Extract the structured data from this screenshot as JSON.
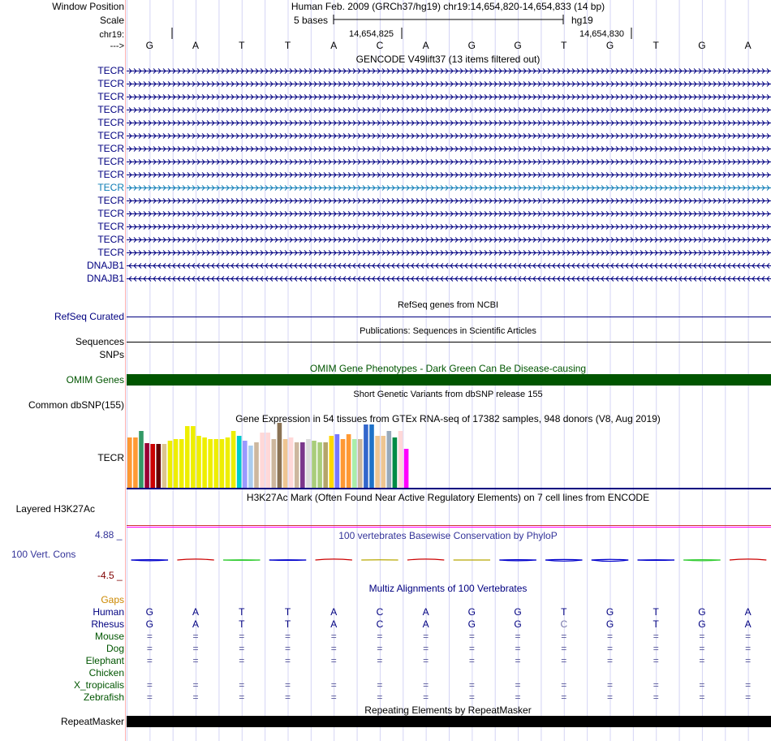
{
  "header": {
    "position_label": "Window Position",
    "position_value": "Human Feb. 2009 (GRCh37/hg19)   chr19:14,654,820-14,654,833 (14 bp)",
    "scale_label": "Scale",
    "scale_text": "5 bases",
    "scale_db": "hg19",
    "chrom_label": "chr19:",
    "coord_1": "14,654,825",
    "coord_2": "14,654,830",
    "strand_label": "--->"
  },
  "sequence": [
    "G",
    "A",
    "T",
    "T",
    "A",
    "C",
    "A",
    "G",
    "G",
    "T",
    "G",
    "T",
    "G",
    "A"
  ],
  "gencode": {
    "title": "GENCODE V49lift37 (13 items filtered out)",
    "items": [
      {
        "name": "TECR",
        "color": "#000080",
        "strand": "+"
      },
      {
        "name": "TECR",
        "color": "#000080",
        "strand": "+"
      },
      {
        "name": "TECR",
        "color": "#000080",
        "strand": "+"
      },
      {
        "name": "TECR",
        "color": "#000080",
        "strand": "+"
      },
      {
        "name": "TECR",
        "color": "#000080",
        "strand": "+"
      },
      {
        "name": "TECR",
        "color": "#000080",
        "strand": "+"
      },
      {
        "name": "TECR",
        "color": "#000080",
        "strand": "+"
      },
      {
        "name": "TECR",
        "color": "#000080",
        "strand": "+"
      },
      {
        "name": "TECR",
        "color": "#000080",
        "strand": "+"
      },
      {
        "name": "TECR",
        "color": "#0c7cb5",
        "strand": "+"
      },
      {
        "name": "TECR",
        "color": "#000080",
        "strand": "+"
      },
      {
        "name": "TECR",
        "color": "#000080",
        "strand": "+"
      },
      {
        "name": "TECR",
        "color": "#000080",
        "strand": "+"
      },
      {
        "name": "TECR",
        "color": "#000080",
        "strand": "+"
      },
      {
        "name": "TECR",
        "color": "#000080",
        "strand": "+"
      },
      {
        "name": "DNAJB1",
        "color": "#000080",
        "strand": "-"
      },
      {
        "name": "DNAJB1",
        "color": "#000080",
        "strand": "-"
      }
    ]
  },
  "refseq": {
    "title": "RefSeq genes from NCBI",
    "label": "RefSeq Curated",
    "color": "#000080"
  },
  "pubs": {
    "title": "Publications: Sequences in Scientific Articles",
    "label1": "Sequences",
    "label2": "SNPs"
  },
  "omim": {
    "title": "OMIM Gene Phenotypes - Dark Green Can Be Disease-causing",
    "label": "OMIM Genes",
    "color": "#005500"
  },
  "dbsnp": {
    "title": "Short Genetic Variants from dbSNP release 155",
    "label": "Common dbSNP(155)"
  },
  "gtex": {
    "title": "Gene Expression in 54 tissues from GTEx RNA-seq of 17382 samples, 948 donors (V8, Aug 2019)",
    "label": "TECR",
    "max_value": 80,
    "bars": [
      {
        "v": 62,
        "c": "#ff9933"
      },
      {
        "v": 62,
        "c": "#ff9933"
      },
      {
        "v": 70,
        "c": "#339966"
      },
      {
        "v": 55,
        "c": "#990033"
      },
      {
        "v": 54,
        "c": "#cc0000"
      },
      {
        "v": 54,
        "c": "#660000"
      },
      {
        "v": 54,
        "c": "#dcc590"
      },
      {
        "v": 58,
        "c": "#eeee00"
      },
      {
        "v": 60,
        "c": "#eeee00"
      },
      {
        "v": 60,
        "c": "#eeee00"
      },
      {
        "v": 76,
        "c": "#eeee00"
      },
      {
        "v": 76,
        "c": "#eeee00"
      },
      {
        "v": 64,
        "c": "#eeee00"
      },
      {
        "v": 62,
        "c": "#eeee00"
      },
      {
        "v": 60,
        "c": "#eeee00"
      },
      {
        "v": 60,
        "c": "#eeee00"
      },
      {
        "v": 60,
        "c": "#eeee00"
      },
      {
        "v": 62,
        "c": "#eeee00"
      },
      {
        "v": 70,
        "c": "#eeee00"
      },
      {
        "v": 64,
        "c": "#00cccc"
      },
      {
        "v": 58,
        "c": "#9999ff"
      },
      {
        "v": 52,
        "c": "#aaccee"
      },
      {
        "v": 56,
        "c": "#cdb79e"
      },
      {
        "v": 68,
        "c": "#ffd8d8"
      },
      {
        "v": 68,
        "c": "#ffd8d8"
      },
      {
        "v": 60,
        "c": "#cdb79e"
      },
      {
        "v": 80,
        "c": "#8b7355"
      },
      {
        "v": 60,
        "c": "#eec591"
      },
      {
        "v": 62,
        "c": "#ffd8d8"
      },
      {
        "v": 56,
        "c": "#cdb79e"
      },
      {
        "v": 56,
        "c": "#7a378b"
      },
      {
        "v": 60,
        "c": "#dcdcdc"
      },
      {
        "v": 58,
        "c": "#a9cd7b"
      },
      {
        "v": 56,
        "c": "#a9cd7b"
      },
      {
        "v": 56,
        "c": "#b4a56a"
      },
      {
        "v": 64,
        "c": "#ffd700"
      },
      {
        "v": 66,
        "c": "#7777ff"
      },
      {
        "v": 60,
        "c": "#ff9933"
      },
      {
        "v": 66,
        "c": "#ff9933"
      },
      {
        "v": 60,
        "c": "#aaeeaa"
      },
      {
        "v": 60,
        "c": "#cdb79e"
      },
      {
        "v": 78,
        "c": "#3366cc"
      },
      {
        "v": 78,
        "c": "#1e72c8"
      },
      {
        "v": 64,
        "c": "#eec591"
      },
      {
        "v": 64,
        "c": "#eec591"
      },
      {
        "v": 70,
        "c": "#99aabb"
      },
      {
        "v": 62,
        "c": "#008b45"
      },
      {
        "v": 70,
        "c": "#ffd8d8"
      },
      {
        "v": 48,
        "c": "#ff00ff"
      }
    ]
  },
  "h3k27ac": {
    "title": "H3K27Ac Mark (Often Found Near Active Regulatory Elements) on 7 cell lines from ENCODE",
    "label": "Layered H3K27Ac"
  },
  "cons": {
    "title": "100 vertebrates Basewise Conservation by PhyloP",
    "label": "100 Vert. Cons",
    "max_label": "4.88 _",
    "min_label": "-4.5 _",
    "range": [
      -4.5,
      4.88
    ],
    "scores": [
      -0.4,
      0.5,
      -0.2,
      -0.2,
      0.5,
      0.1,
      0.5,
      0.0,
      -0.4,
      -0.6,
      -0.7,
      -0.2,
      -0.4,
      0.5
    ]
  },
  "multiz": {
    "title": "Multiz Alignments of 100 Vertebrates",
    "gaps_label": "Gaps",
    "species": [
      {
        "name": "Human",
        "color": "#000080",
        "row": "GATTACAGGTGTGA"
      },
      {
        "name": "Rhesus",
        "color": "#000080",
        "row": "GATTACAGGCGTGA"
      },
      {
        "name": "Mouse",
        "color": "#005500",
        "row": "=============="
      },
      {
        "name": "Dog",
        "color": "#005500",
        "row": "=============="
      },
      {
        "name": "Elephant",
        "color": "#005500",
        "row": "=============="
      },
      {
        "name": "Chicken",
        "color": "#005500",
        "row": ""
      },
      {
        "name": "X_tropicalis",
        "color": "#005500",
        "row": "=============="
      },
      {
        "name": "Zebrafish",
        "color": "#005500",
        "row": "=============="
      }
    ]
  },
  "rmsk": {
    "title": "Repeating Elements by RepeatMasker",
    "label": "RepeatMasker"
  },
  "colors": {
    "navy": "#000080",
    "purple": "#333399",
    "maroon": "#800000",
    "gold": "#cc8800",
    "accent": "#ff00ff"
  }
}
